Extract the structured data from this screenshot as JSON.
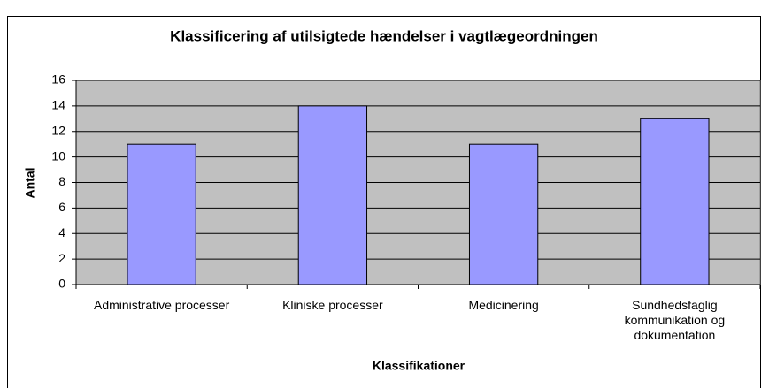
{
  "chart_data": {
    "type": "bar",
    "title": "Klassificering af utilsigtede hændelser i vagtlægeordningen",
    "categories": [
      "Administrative processer",
      "Kliniske processer",
      "Medicinering",
      "Sundhedsfaglig kommunikation og dokumentation"
    ],
    "values": [
      11,
      14,
      11,
      13
    ],
    "color": "#9999ff",
    "ylim": [
      0,
      16
    ],
    "yticks": [
      0,
      2,
      4,
      6,
      8,
      10,
      12,
      14,
      16
    ],
    "grid": true,
    "x_label": "Klassifikationer",
    "y_label": "Antal"
  }
}
